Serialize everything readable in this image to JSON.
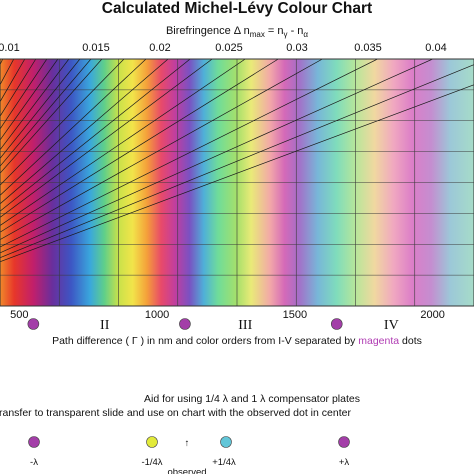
{
  "chart_data": {
    "type": "heatmap",
    "title": "Calculated Michel-Lévy Colour Chart",
    "top_axis": {
      "label_prefix": "Birefringence Δ n",
      "label_sub1": "max",
      "label_mid": " = n",
      "label_sub2": "γ",
      "label_mid2": " - n",
      "label_sub3": "α",
      "ticks": [
        "0.01",
        "0.015",
        "0.02",
        "0.025",
        "0.03",
        "0.035",
        "0.04"
      ],
      "tick_values": [
        0.01,
        0.015,
        0.02,
        0.025,
        0.03,
        0.035,
        0.04
      ]
    },
    "bottom_axis": {
      "ticks": [
        "500",
        "1000",
        "1500",
        "2000"
      ],
      "tick_values": [
        500,
        1000,
        1500,
        2000
      ],
      "visible_range": [
        430,
        2150
      ],
      "caption_before": "Path difference ( Γ ) in nm and color orders from I-V separated by ",
      "caption_highlight": "magenta",
      "caption_after": " dots"
    },
    "order_labels": [
      "II",
      "III",
      "IV"
    ],
    "order_label_positions": [
      810,
      1320,
      1850
    ],
    "order_boundaries_nm": [
      551,
      1101,
      1652
    ],
    "thickness_lines_um": [
      10,
      11,
      12,
      13,
      14,
      15,
      16,
      17,
      18,
      19,
      20,
      22,
      24,
      26,
      28,
      30,
      33,
      36,
      40,
      45,
      50,
      55,
      60
    ],
    "gridline_count_vertical": 8,
    "gridline_count_horizontal": 7,
    "colors": {
      "magenta_dot": "#a33ea8",
      "yellow_dot": "#e2ea3a",
      "cyan_dot": "#62c6d8",
      "highlight_text": "#b03cb3"
    }
  },
  "compensator_aid": {
    "line1": "Aid for using 1/4 λ and 1 λ compensator plates",
    "line2": "ransfer to transparent slide and use on chart with the observed dot in center",
    "labels": {
      "minus_lambda": "-λ",
      "minus_quarter": "-1/4λ",
      "arrow": "↑",
      "plus_quarter": "+1/4λ",
      "plus_lambda": "+λ",
      "observed": "observed"
    }
  }
}
